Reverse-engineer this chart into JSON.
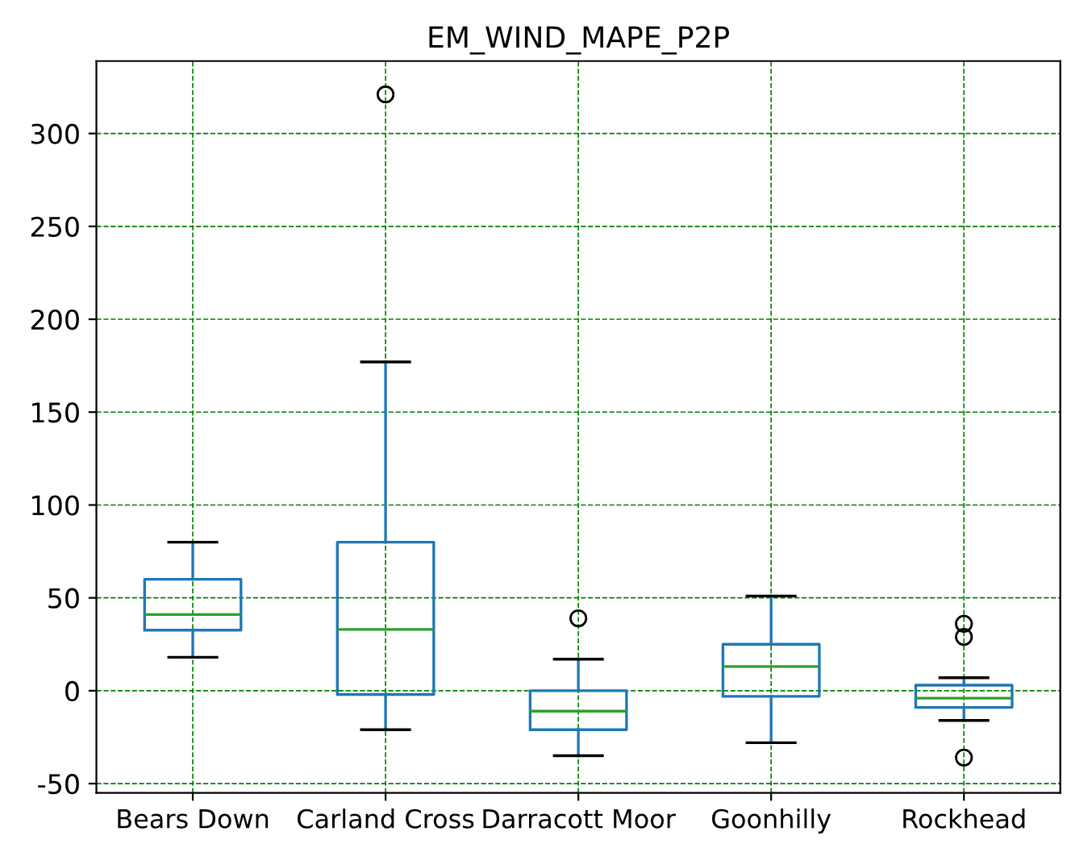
{
  "chart_data": {
    "type": "box",
    "title": "EM_WIND_MAPE_P2P",
    "categories": [
      "Bears Down",
      "Carland Cross",
      "Darracott Moor",
      "Goonhilly",
      "Rockhead"
    ],
    "series": [
      {
        "color": "#1f77b4",
        "boxes": [
          {
            "low": 18,
            "q1": 32.6,
            "median": 41,
            "q3": 60,
            "high": 80
          },
          {
            "low": -21,
            "q1": -2,
            "median": 33,
            "q3": 80,
            "high": 177,
            "outliers": [
              321
            ]
          },
          {
            "low": -35,
            "q1": -21,
            "median": -11,
            "q3": 0,
            "high": 17,
            "outliers": [
              39
            ]
          },
          {
            "low": -28,
            "q1": -3,
            "median": 13,
            "q3": 25,
            "high": 51
          },
          {
            "low": -16,
            "q1": -9,
            "median": -4,
            "q3": 3,
            "high": 7,
            "outliers": [
              36,
              29,
              -36
            ]
          }
        ]
      }
    ],
    "ylim": [
      -55,
      339
    ],
    "yticks": [
      -50,
      0,
      50,
      100,
      150,
      200,
      250,
      300
    ],
    "grid": true
  }
}
